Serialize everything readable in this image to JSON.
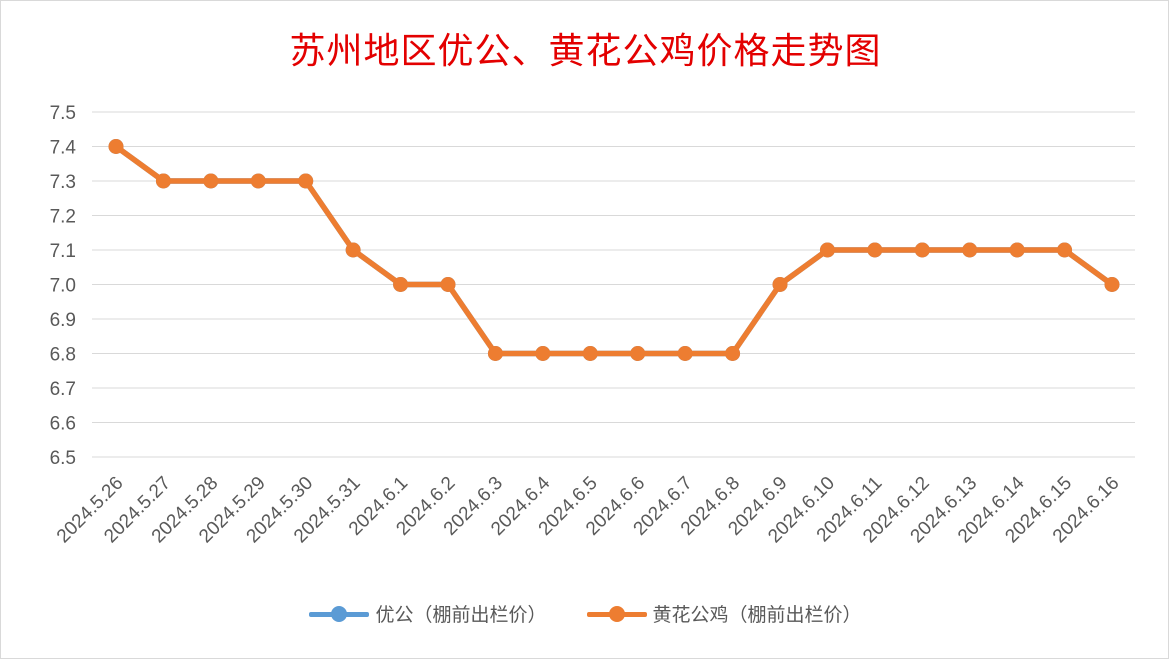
{
  "chart_data": {
    "type": "line",
    "title": "苏州地区优公、黄花公鸡价格走势图",
    "xlabel": "",
    "ylabel": "",
    "categories": [
      "2024.5.26",
      "2024.5.27",
      "2024.5.28",
      "2024.5.29",
      "2024.5.30",
      "2024.5.31",
      "2024.6.1",
      "2024.6.2",
      "2024.6.3",
      "2024.6.4",
      "2024.6.5",
      "2024.6.6",
      "2024.6.7",
      "2024.6.8",
      "2024.6.9",
      "2024.6.10",
      "2024.6.11",
      "2024.6.12",
      "2024.6.13",
      "2024.6.14",
      "2024.6.15",
      "2024.6.16"
    ],
    "ylim": [
      6.5,
      7.5
    ],
    "yticks": [
      "6.5",
      "6.6",
      "6.7",
      "6.8",
      "6.9",
      "7.0",
      "7.1",
      "7.2",
      "7.3",
      "7.4",
      "7.5"
    ],
    "grid": true,
    "legend_position": "bottom",
    "series": [
      {
        "name": "优公（棚前出栏价）",
        "color": "#5b9bd5",
        "values": [
          7.4,
          7.3,
          7.3,
          7.3,
          7.3,
          7.1,
          7.0,
          7.0,
          6.8,
          6.8,
          6.8,
          6.8,
          6.8,
          6.8,
          7.0,
          7.1,
          7.1,
          7.1,
          7.1,
          7.1,
          7.1,
          7.0
        ]
      },
      {
        "name": "黄花公鸡（棚前出栏价）",
        "color": "#ed7d31",
        "values": [
          7.4,
          7.3,
          7.3,
          7.3,
          7.3,
          7.1,
          7.0,
          7.0,
          6.8,
          6.8,
          6.8,
          6.8,
          6.8,
          6.8,
          7.0,
          7.1,
          7.1,
          7.1,
          7.1,
          7.1,
          7.1,
          7.0
        ]
      }
    ]
  },
  "colors": {
    "title": "#e30000",
    "tick_text": "#595959",
    "grid": "#d9d9d9"
  }
}
